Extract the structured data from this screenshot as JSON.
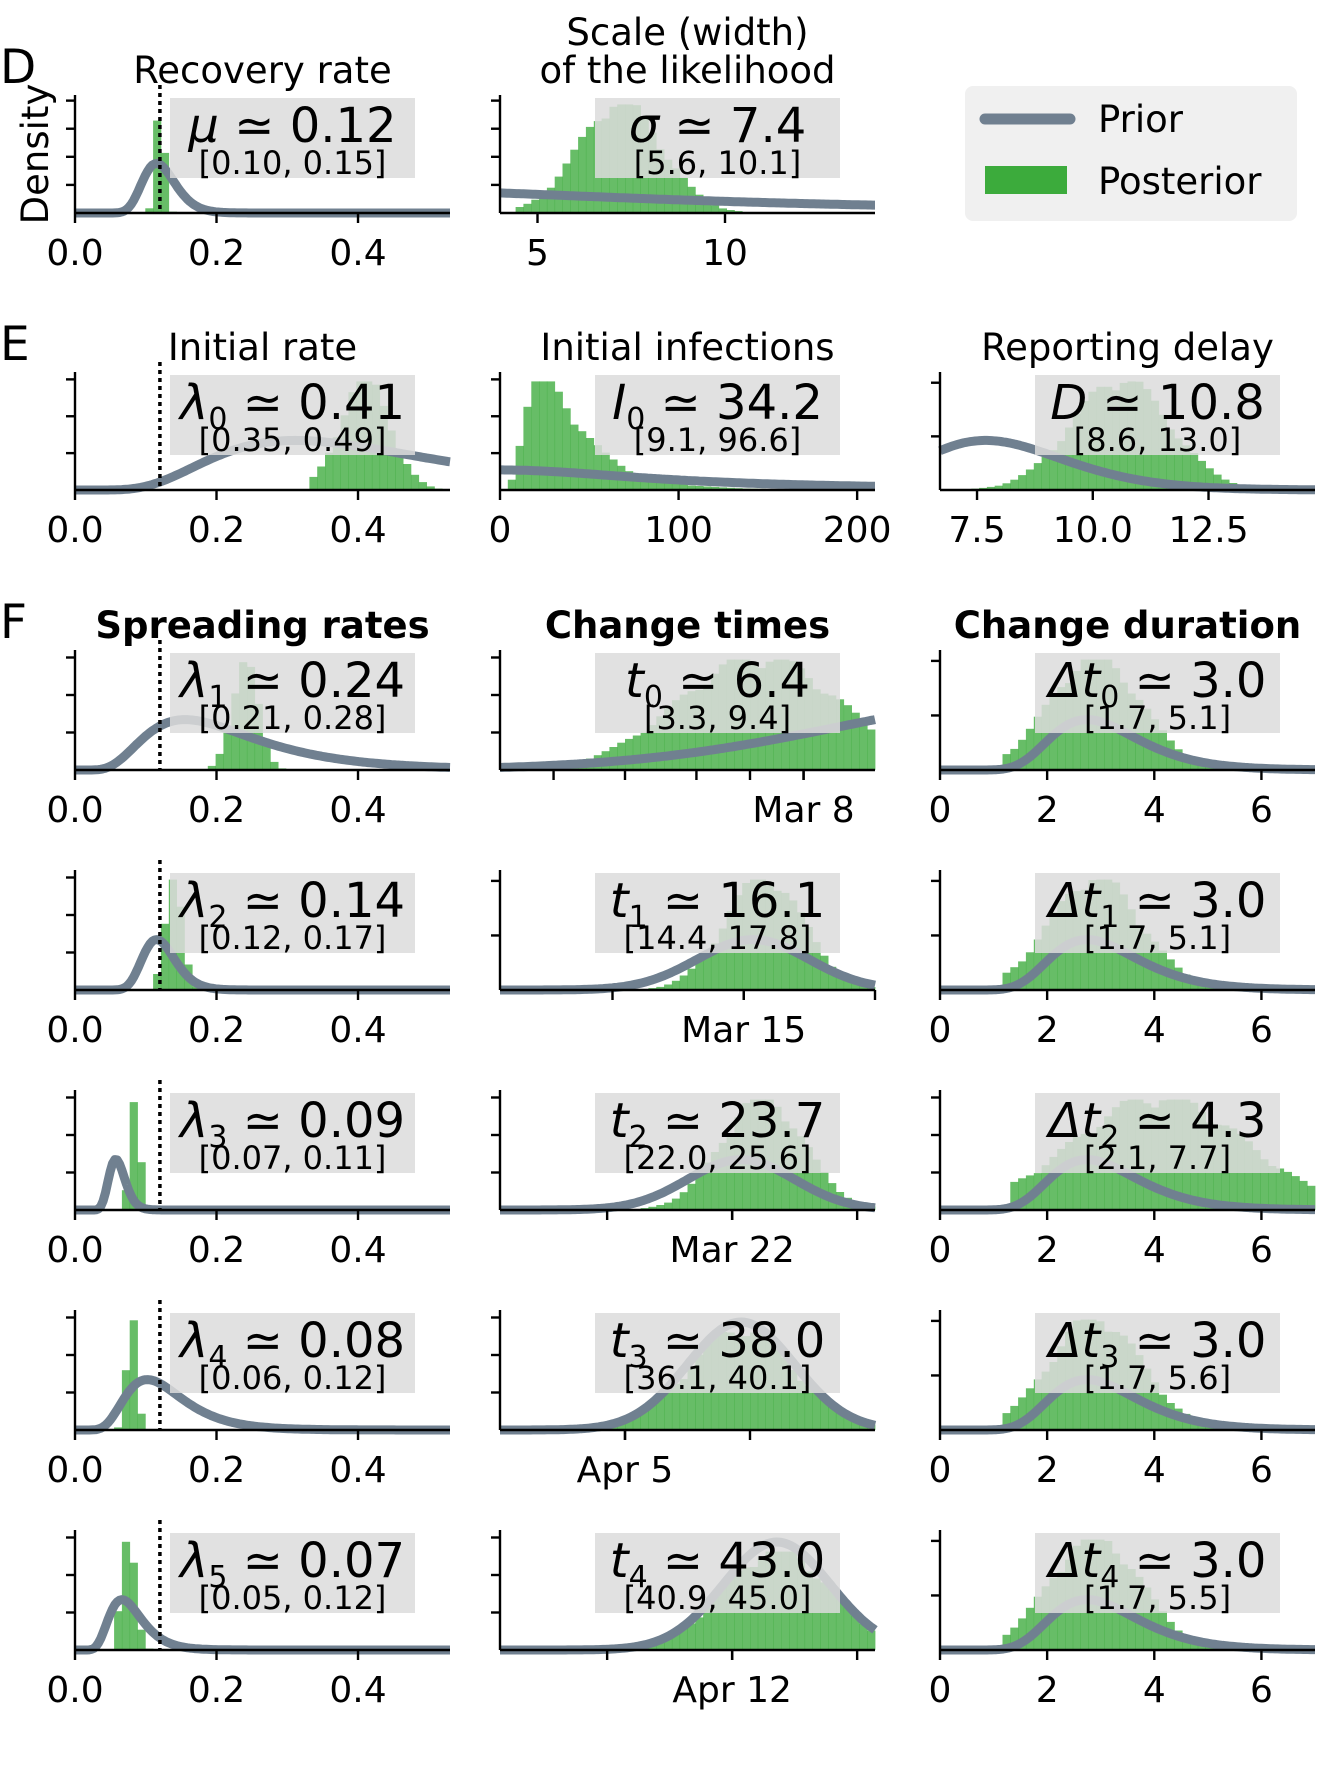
{
  "colors": {
    "prior": "#708090",
    "posterior": "#3cab3c",
    "box": "#dcdcdc",
    "legend_bg": "#f0f0f0"
  },
  "legend": {
    "prior": "Prior",
    "posterior": "Posterior"
  },
  "chart_data": [
    {
      "panel": "D",
      "title": "Recovery rate",
      "ylabel": "Density",
      "type": "histogram+line",
      "xlim": [
        0,
        0.53
      ],
      "xticks": [
        "0.0",
        "0.2",
        "0.4"
      ],
      "xtick_values": [
        0,
        0.2,
        0.4
      ],
      "yticks": 4,
      "median_line": 0.12,
      "estimate": {
        "symbol": "μ",
        "sub": "",
        "value": "0.12",
        "ci": "[0.10, 0.15]"
      },
      "prior": {
        "dist": "lognormal",
        "median": 0.12,
        "sigma": 0.2
      },
      "posterior": {
        "mode": 0.12,
        "spread": 0.006,
        "xmin": 0.1,
        "xmax": 0.15
      }
    },
    {
      "panel": "",
      "title": "Scale (width)",
      "title2": "of the likelihood",
      "type": "histogram+line",
      "xlim": [
        4,
        14
      ],
      "xticks": [
        "5",
        "10"
      ],
      "xtick_values": [
        5,
        10
      ],
      "yticks": 4,
      "median_line": null,
      "estimate": {
        "symbol": "σ",
        "sub": "",
        "value": "7.4",
        "ci": "[5.6, 10.1]"
      },
      "prior": {
        "dist": "halfcauchy",
        "scale": 10
      },
      "posterior": {
        "mode": 7.2,
        "spread": 1.1,
        "xmin": 4.4,
        "xmax": 12
      }
    },
    {
      "panel": "E",
      "title": "Initial rate",
      "type": "histogram+line",
      "xlim": [
        0,
        0.53
      ],
      "xticks": [
        "0.0",
        "0.2",
        "0.4"
      ],
      "xtick_values": [
        0,
        0.2,
        0.4
      ],
      "yticks": 3,
      "median_line": 0.12,
      "estimate": {
        "symbol": "λ",
        "sub": "0",
        "value": "0.41",
        "ci": "[0.35, 0.49]"
      },
      "prior": {
        "dist": "lognormal",
        "median": 0.4,
        "sigma": 0.5
      },
      "posterior": {
        "mode": 0.41,
        "spread": 0.035,
        "xmin": 0.33,
        "xmax": 0.52
      }
    },
    {
      "panel": "",
      "title": "Initial infections",
      "type": "histogram+line",
      "xlim": [
        0,
        210
      ],
      "xticks": [
        "0",
        "100",
        "200"
      ],
      "xtick_values": [
        0,
        100,
        200
      ],
      "yticks": 3,
      "median_line": null,
      "estimate": {
        "symbol": "I",
        "sub": "0",
        "value": "34.2",
        "ci": "[9.1, 96.6]"
      },
      "prior": {
        "dist": "halfcauchy",
        "scale": 100
      },
      "posterior": {
        "dist": "lognormal",
        "median": 34.2,
        "sigma": 0.6,
        "xmin": 5,
        "xmax": 200
      }
    },
    {
      "panel": "",
      "title": "Reporting delay",
      "type": "histogram+line",
      "xlim": [
        6.7,
        14.8
      ],
      "xticks": [
        "7.5",
        "10.0",
        "12.5"
      ],
      "xtick_values": [
        7.5,
        10,
        12.5
      ],
      "yticks": 2,
      "median_line": null,
      "estimate": {
        "symbol": "D",
        "sub": "",
        "value": "10.8",
        "ci": "[8.6, 13.0]"
      },
      "prior": {
        "dist": "lognormal",
        "median": 8,
        "sigma": 0.2
      },
      "posterior": {
        "mode": 10.6,
        "spread": 1.05,
        "xmin": 7.2,
        "xmax": 14
      }
    },
    {
      "panel": "F",
      "title": "Spreading rates",
      "bold": true,
      "type": "histogram+line",
      "xlim": [
        0,
        0.53
      ],
      "xticks": [
        "0.0",
        "0.2",
        "0.4"
      ],
      "xtick_values": [
        0,
        0.2,
        0.4
      ],
      "yticks": 3,
      "median_line": 0.12,
      "estimate": {
        "symbol": "λ",
        "sub": "1",
        "value": "0.24",
        "ci": "[0.21, 0.28]"
      },
      "prior": {
        "dist": "lognormal",
        "median": 0.2,
        "sigma": 0.5
      },
      "posterior": {
        "mode": 0.24,
        "spread": 0.018,
        "xmin": 0.19,
        "xmax": 0.3
      }
    },
    {
      "panel": "",
      "title": "Change times",
      "bold": true,
      "type": "histogram+line",
      "xlim": [
        -9,
        12
      ],
      "xticks": [
        "Mar 8"
      ],
      "xtick_values": [
        8
      ],
      "minor_ticks": [
        -6,
        -2,
        2,
        5,
        8
      ],
      "yticks": 3,
      "median_line": null,
      "estimate": {
        "symbol": "t",
        "sub": "0",
        "value": "6.4",
        "ci": "[3.3, 9.4]"
      },
      "prior": {
        "dist": "normal",
        "mean": 22,
        "sd": 12
      },
      "posterior": {
        "mode": 5.5,
        "spread": 4.5,
        "xmin": -9,
        "xmax": 12
      }
    },
    {
      "panel": "",
      "title": "Change duration",
      "bold": true,
      "type": "histogram+line",
      "xlim": [
        0,
        7
      ],
      "xticks": [
        "0",
        "2",
        "4",
        "6"
      ],
      "xtick_values": [
        0,
        2,
        4,
        6
      ],
      "yticks": 2,
      "median_line": null,
      "estimate": {
        "symbol": "Δt",
        "sub": "0",
        "value": "3.0",
        "ci": "[1.7, 5.1]"
      },
      "prior": {
        "dist": "lognormal",
        "median": 3,
        "sigma": 0.3
      },
      "posterior": {
        "mode": 2.9,
        "spread": 0.85,
        "xmin": 1.1,
        "xmax": 6.2
      }
    },
    {
      "panel": "",
      "type": "histogram+line",
      "xlim": [
        0,
        0.53
      ],
      "xticks": [
        "0.0",
        "0.2",
        "0.4"
      ],
      "xtick_values": [
        0,
        0.2,
        0.4
      ],
      "yticks": 3,
      "median_line": 0.12,
      "estimate": {
        "symbol": "λ",
        "sub": "2",
        "value": "0.14",
        "ci": "[0.12, 0.17]"
      },
      "prior": {
        "dist": "lognormal",
        "median": 0.12,
        "sigma": 0.2
      },
      "posterior": {
        "mode": 0.14,
        "spread": 0.012,
        "xmin": 0.11,
        "xmax": 0.19
      }
    },
    {
      "panel": "",
      "type": "histogram+line",
      "xlim": [
        2,
        22
      ],
      "xticks": [
        "Mar 15"
      ],
      "xtick_values": [
        15
      ],
      "minor_ticks": [
        8,
        15,
        22
      ],
      "yticks": 2,
      "median_line": null,
      "estimate": {
        "symbol": "t",
        "sub": "1",
        "value": "16.1",
        "ci": "[14.4, 17.8]"
      },
      "prior": {
        "dist": "normal",
        "mean": 15.5,
        "sd": 3
      },
      "posterior": {
        "mode": 16.1,
        "spread": 2.1,
        "xmin": 10,
        "xmax": 22
      }
    },
    {
      "panel": "",
      "type": "histogram+line",
      "xlim": [
        0,
        7
      ],
      "xticks": [
        "0",
        "2",
        "4",
        "6"
      ],
      "xtick_values": [
        0,
        2,
        4,
        6
      ],
      "yticks": 2,
      "median_line": null,
      "estimate": {
        "symbol": "Δt",
        "sub": "1",
        "value": "3.0",
        "ci": "[1.7, 5.1]"
      },
      "prior": {
        "dist": "lognormal",
        "median": 3,
        "sigma": 0.3
      },
      "posterior": {
        "mode": 2.9,
        "spread": 0.85,
        "xmin": 1.1,
        "xmax": 6.2
      }
    },
    {
      "panel": "",
      "type": "histogram+line",
      "xlim": [
        0,
        0.53
      ],
      "xticks": [
        "0.0",
        "0.2",
        "0.4"
      ],
      "xtick_values": [
        0,
        0.2,
        0.4
      ],
      "yticks": 3,
      "median_line": 0.12,
      "estimate": {
        "symbol": "λ",
        "sub": "3",
        "value": "0.09",
        "ci": "[0.07, 0.11]"
      },
      "prior": {
        "dist": "lognormal",
        "median": 0.06,
        "sigma": 0.2
      },
      "posterior": {
        "mode": 0.085,
        "spread": 0.007,
        "xmin": 0.07,
        "xmax": 0.11
      }
    },
    {
      "panel": "",
      "type": "histogram+line",
      "xlim": [
        9,
        30
      ],
      "xticks": [
        "Mar 22"
      ],
      "xtick_values": [
        22
      ],
      "minor_ticks": [
        15,
        22,
        29
      ],
      "yticks": 3,
      "median_line": null,
      "estimate": {
        "symbol": "t",
        "sub": "2",
        "value": "23.7",
        "ci": "[22.0, 25.6]"
      },
      "prior": {
        "dist": "normal",
        "mean": 22.5,
        "sd": 3
      },
      "posterior": {
        "mode": 23.7,
        "spread": 2.3,
        "xmin": 15,
        "xmax": 30
      }
    },
    {
      "panel": "",
      "type": "histogram+line",
      "xlim": [
        0,
        7
      ],
      "xticks": [
        "0",
        "2",
        "4",
        "6"
      ],
      "xtick_values": [
        0,
        2,
        4,
        6
      ],
      "yticks": 3,
      "median_line": null,
      "estimate": {
        "symbol": "Δt",
        "sub": "2",
        "value": "4.3",
        "ci": "[2.1, 7.7]"
      },
      "prior": {
        "dist": "lognormal",
        "median": 3,
        "sigma": 0.3
      },
      "posterior": {
        "mode": 4.1,
        "spread": 1.6,
        "xmin": 1.3,
        "xmax": 7
      }
    },
    {
      "panel": "",
      "type": "histogram+line",
      "xlim": [
        0,
        0.53
      ],
      "xticks": [
        "0.0",
        "0.2",
        "0.4"
      ],
      "xtick_values": [
        0,
        0.2,
        0.4
      ],
      "yticks": 3,
      "median_line": 0.12,
      "estimate": {
        "symbol": "λ",
        "sub": "4",
        "value": "0.08",
        "ci": "[0.06, 0.12]"
      },
      "prior": {
        "dist": "lognormal",
        "median": 0.12,
        "sigma": 0.4
      },
      "posterior": {
        "mode": 0.08,
        "spread": 0.007,
        "xmin": 0.06,
        "xmax": 0.11
      }
    },
    {
      "panel": "",
      "type": "histogram+line",
      "xlim": [
        29,
        50
      ],
      "xticks": [
        "Apr 5"
      ],
      "xtick_values": [
        36
      ],
      "minor_ticks": [
        36,
        43
      ],
      "yticks": 3,
      "median_line": null,
      "estimate": {
        "symbol": "t",
        "sub": "3",
        "value": "38.0",
        "ci": "[36.1, 40.1]"
      },
      "prior": {
        "dist": "normal",
        "mean": 42.5,
        "sd": 3
      },
      "posterior": {
        "mode": 42.5,
        "spread": 3,
        "xmin": 34,
        "xmax": 50,
        "same_as_prior": true
      }
    },
    {
      "panel": "",
      "type": "histogram+line",
      "xlim": [
        0,
        7
      ],
      "xticks": [
        "0",
        "2",
        "4",
        "6"
      ],
      "xtick_values": [
        0,
        2,
        4,
        6
      ],
      "yticks": 2,
      "median_line": null,
      "estimate": {
        "symbol": "Δt",
        "sub": "3",
        "value": "3.0",
        "ci": "[1.7, 5.6]"
      },
      "prior": {
        "dist": "lognormal",
        "median": 3,
        "sigma": 0.3
      },
      "posterior": {
        "mode": 2.9,
        "spread": 0.85,
        "xmin": 1.1,
        "xmax": 6.2
      }
    },
    {
      "panel": "",
      "type": "histogram+line",
      "xlim": [
        0,
        0.53
      ],
      "xticks": [
        "0.0",
        "0.2",
        "0.4"
      ],
      "xtick_values": [
        0,
        0.2,
        0.4
      ],
      "yticks": 3,
      "median_line": 0.12,
      "estimate": {
        "symbol": "λ",
        "sub": "5",
        "value": "0.07",
        "ci": "[0.05, 0.12]"
      },
      "prior": {
        "dist": "lognormal",
        "median": 0.075,
        "sigma": 0.35
      },
      "posterior": {
        "mode": 0.075,
        "spread": 0.01,
        "xmin": 0.05,
        "xmax": 0.12
      }
    },
    {
      "panel": "",
      "type": "histogram+line",
      "xlim": [
        30,
        51
      ],
      "xticks": [
        "Apr 12"
      ],
      "xtick_values": [
        43
      ],
      "minor_ticks": [
        36,
        43,
        50
      ],
      "yticks": 3,
      "median_line": null,
      "estimate": {
        "symbol": "t",
        "sub": "4",
        "value": "43.0",
        "ci": "[40.9, 45.0]"
      },
      "prior": {
        "dist": "normal",
        "mean": 45.5,
        "sd": 3
      },
      "posterior": {
        "mode": 45.5,
        "spread": 3,
        "xmin": 36,
        "xmax": 51,
        "same_as_prior": true
      }
    },
    {
      "panel": "",
      "type": "histogram+line",
      "xlim": [
        0,
        7
      ],
      "xticks": [
        "0",
        "2",
        "4",
        "6"
      ],
      "xtick_values": [
        0,
        2,
        4,
        6
      ],
      "yticks": 2,
      "median_line": null,
      "estimate": {
        "symbol": "Δt",
        "sub": "4",
        "value": "3.0",
        "ci": "[1.7, 5.5]"
      },
      "prior": {
        "dist": "lognormal",
        "median": 3,
        "sigma": 0.3
      },
      "posterior": {
        "mode": 2.9,
        "spread": 0.85,
        "xmin": 1.1,
        "xmax": 6.2
      }
    }
  ]
}
